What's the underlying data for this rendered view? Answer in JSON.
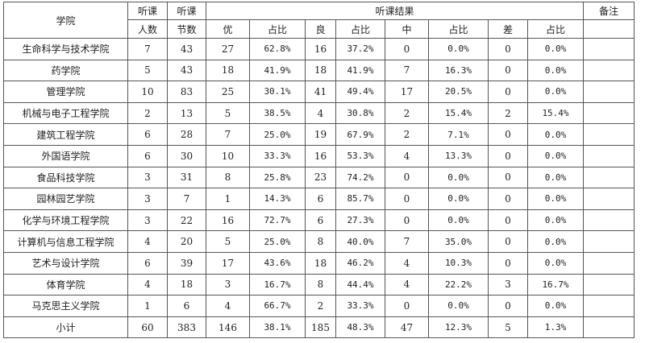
{
  "header": {
    "college": "学院",
    "teachers": [
      "听课",
      "人数"
    ],
    "sessions": [
      "听课",
      "节数"
    ],
    "results": "听课结果",
    "remarks": "备注",
    "sub": [
      "优",
      "占比",
      "良",
      "占比",
      "中",
      "占比",
      "差",
      "占比"
    ]
  },
  "rows": [
    {
      "name": "生命科学与技术学院",
      "c": [
        "7",
        "43",
        "27",
        "62.8%",
        "16",
        "37.2%",
        "0",
        "0.0%",
        "0",
        "0.0%"
      ]
    },
    {
      "name": "药学院",
      "c": [
        "5",
        "43",
        "18",
        "41.9%",
        "18",
        "41.9%",
        "7",
        "16.3%",
        "0",
        "0.0%"
      ]
    },
    {
      "name": "管理学院",
      "c": [
        "10",
        "83",
        "25",
        "30.1%",
        "41",
        "49.4%",
        "17",
        "20.5%",
        "0",
        "0.0%"
      ]
    },
    {
      "name": "机械与电子工程学院",
      "c": [
        "2",
        "13",
        "5",
        "38.5%",
        "4",
        "30.8%",
        "2",
        "15.4%",
        "2",
        "15.4%"
      ]
    },
    {
      "name": "建筑工程学院",
      "c": [
        "6",
        "28",
        "7",
        "25.0%",
        "19",
        "67.9%",
        "2",
        "7.1%",
        "0",
        "0.0%"
      ]
    },
    {
      "name": "外国语学院",
      "c": [
        "6",
        "30",
        "10",
        "33.3%",
        "16",
        "53.3%",
        "4",
        "13.3%",
        "0",
        "0.0%"
      ]
    },
    {
      "name": "食品科技学院",
      "c": [
        "3",
        "31",
        "8",
        "25.8%",
        "23",
        "74.2%",
        "0",
        "0.0%",
        "0",
        "0.0%"
      ]
    },
    {
      "name": "园林园艺学院",
      "c": [
        "3",
        "7",
        "1",
        "14.3%",
        "6",
        "85.7%",
        "0",
        "0.0%",
        "0",
        "0.0%"
      ]
    },
    {
      "name": "化学与环境工程学院",
      "c": [
        "3",
        "22",
        "16",
        "72.7%",
        "6",
        "27.3%",
        "0",
        "0.0%",
        "0",
        "0.0%"
      ]
    },
    {
      "name": "计算机与信息工程学院",
      "c": [
        "4",
        "20",
        "5",
        "25.0%",
        "8",
        "40.0%",
        "7",
        "35.0%",
        "0",
        "0.0%"
      ]
    },
    {
      "name": "艺术与设计学院",
      "c": [
        "6",
        "39",
        "17",
        "43.6%",
        "18",
        "46.2%",
        "4",
        "10.3%",
        "0",
        "0.0%"
      ]
    },
    {
      "name": "体育学院",
      "c": [
        "4",
        "18",
        "3",
        "16.7%",
        "8",
        "44.4%",
        "4",
        "22.2%",
        "3",
        "16.7%"
      ]
    },
    {
      "name": "马克思主义学院",
      "c": [
        "1",
        "6",
        "4",
        "66.7%",
        "2",
        "33.3%",
        "0",
        "0.0%",
        "0",
        "0.0%"
      ]
    },
    {
      "name": "小计",
      "c": [
        "60",
        "383",
        "146",
        "38.1%",
        "185",
        "48.3%",
        "47",
        "12.3%",
        "5",
        "1.3%"
      ]
    }
  ]
}
